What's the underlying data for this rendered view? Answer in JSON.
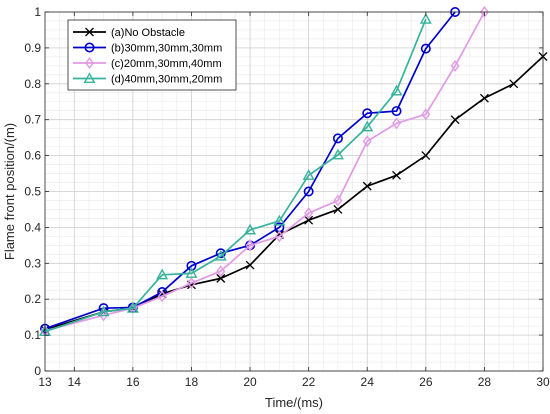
{
  "chart_data": {
    "type": "line",
    "title": "",
    "xlabel": "Time/(ms)",
    "ylabel": "Flame front position/(m)",
    "xlim": [
      13,
      30
    ],
    "ylim": [
      0,
      1
    ],
    "xticks": [
      14,
      16,
      18,
      20,
      22,
      24,
      26,
      28,
      30
    ],
    "xtick_labels": [
      "14",
      "16",
      "18",
      "20",
      "22",
      "24",
      "26",
      "28",
      "30"
    ],
    "yticks": [
      0,
      0.1,
      0.2,
      0.3,
      0.4,
      0.5,
      0.6,
      0.7,
      0.8,
      0.9,
      1
    ],
    "ytick_labels": [
      "0",
      "0.1",
      "0.2",
      "0.3",
      "0.4",
      "0.5",
      "0.6",
      "0.7",
      "0.8",
      "0.9",
      "1"
    ],
    "grid": true,
    "minor_grid": true,
    "legend_position": "top-left",
    "series": [
      {
        "name": "(a)No Obstacle",
        "color": "#000000",
        "marker": "x",
        "x": [
          13,
          15,
          16,
          17,
          18,
          19,
          20,
          21,
          22,
          23,
          24,
          25,
          26,
          27,
          28,
          29,
          30
        ],
        "y": [
          0.115,
          0.165,
          0.175,
          0.215,
          0.24,
          0.258,
          0.295,
          0.38,
          0.42,
          0.45,
          0.515,
          0.545,
          0.6,
          0.7,
          0.76,
          0.8,
          0.876
        ]
      },
      {
        "name": "(b)30mm,30mm,30mm",
        "color": "#0000cc",
        "marker": "o",
        "x": [
          13,
          15,
          16,
          17,
          18,
          19,
          20,
          21,
          22,
          23,
          24,
          25,
          26,
          27
        ],
        "y": [
          0.118,
          0.175,
          0.177,
          0.22,
          0.293,
          0.328,
          0.35,
          0.4,
          0.5,
          0.648,
          0.718,
          0.724,
          0.898,
          1.0
        ]
      },
      {
        "name": "(c)20mm,30mm,40mm",
        "color": "#e29ae6",
        "marker": "diamond",
        "x": [
          13,
          15,
          16,
          17,
          18,
          19,
          20,
          21,
          22,
          23,
          24,
          25,
          26,
          27,
          28
        ],
        "y": [
          0.112,
          0.155,
          0.175,
          0.208,
          0.245,
          0.278,
          0.35,
          0.375,
          0.44,
          0.475,
          0.64,
          0.69,
          0.715,
          0.85,
          1.0
        ]
      },
      {
        "name": "(d)40mm,30mm,20mm",
        "color": "#36b39b",
        "marker": "triangle",
        "x": [
          13,
          15,
          16,
          17,
          18,
          19,
          20,
          21,
          22,
          23,
          24,
          25,
          26
        ],
        "y": [
          0.11,
          0.165,
          0.175,
          0.268,
          0.272,
          0.32,
          0.393,
          0.418,
          0.545,
          0.602,
          0.68,
          0.78,
          0.98
        ]
      }
    ]
  }
}
